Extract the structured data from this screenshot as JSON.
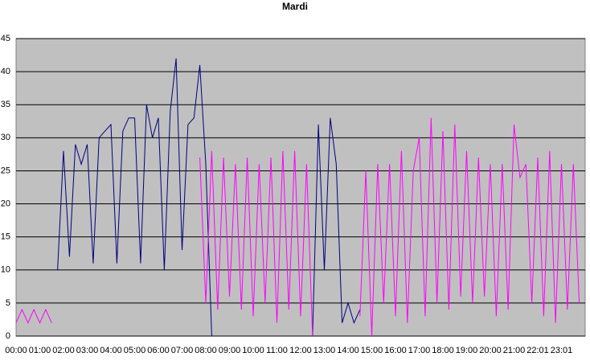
{
  "chart_data": {
    "type": "line",
    "title": "Mardi",
    "categories": [
      "00:00",
      null,
      null,
      null,
      "01:00",
      null,
      null,
      null,
      "02:00",
      null,
      null,
      null,
      "03:00",
      null,
      null,
      null,
      "04:00",
      null,
      null,
      null,
      "05:00",
      null,
      null,
      null,
      "06:00",
      null,
      null,
      null,
      "07:00",
      null,
      null,
      null,
      "08:00",
      null,
      null,
      null,
      "09:00",
      null,
      null,
      null,
      "10:00",
      null,
      null,
      null,
      "11:00",
      null,
      null,
      null,
      "12:00",
      null,
      null,
      null,
      "13:00",
      null,
      null,
      null,
      "14:00",
      null,
      null,
      null,
      "15:00",
      null,
      null,
      null,
      "16:00",
      null,
      null,
      null,
      "17:00",
      null,
      null,
      null,
      "18:00",
      null,
      null,
      null,
      "19:00",
      null,
      null,
      null,
      "20:00",
      null,
      null,
      null,
      "21:00",
      null,
      null,
      null,
      "22:01",
      null,
      null,
      null,
      "23:01",
      null,
      null,
      null
    ],
    "series": [
      {
        "color": "#000080",
        "values": [
          null,
          null,
          null,
          null,
          null,
          null,
          null,
          10,
          28,
          12,
          29,
          26,
          29,
          11,
          30,
          31,
          32,
          11,
          31,
          33,
          33,
          11,
          35,
          30,
          33,
          10,
          34,
          42,
          13,
          32,
          33,
          41,
          26,
          0,
          null,
          null,
          null,
          null,
          null,
          null,
          null,
          null,
          null,
          null,
          null,
          null,
          null,
          null,
          null,
          null,
          0,
          32,
          10,
          33,
          26,
          2,
          5,
          2,
          4,
          null,
          null,
          null,
          null,
          null,
          null,
          null,
          null,
          null,
          null,
          null,
          null,
          null,
          null,
          null,
          null,
          null,
          null,
          null,
          null,
          null,
          null,
          null,
          null,
          null,
          null,
          null,
          null,
          null,
          null,
          null,
          null,
          null,
          null,
          null,
          null,
          null
        ]
      },
      {
        "color": "#ff00ff",
        "values": [
          2,
          4,
          2,
          4,
          2,
          4,
          2,
          null,
          null,
          null,
          null,
          null,
          null,
          null,
          null,
          null,
          null,
          null,
          null,
          null,
          null,
          null,
          null,
          null,
          null,
          null,
          null,
          null,
          null,
          null,
          null,
          27,
          5,
          28,
          4,
          27,
          6,
          26,
          4,
          27,
          3,
          26,
          5,
          27,
          2,
          28,
          4,
          28,
          3,
          26,
          0,
          null,
          null,
          null,
          null,
          null,
          null,
          null,
          3,
          25,
          0,
          26,
          5,
          26,
          3,
          28,
          2,
          25,
          30,
          3,
          33,
          5,
          31,
          4,
          32,
          6,
          28,
          5,
          27,
          6,
          26,
          3,
          26,
          4,
          32,
          24,
          26,
          5,
          27,
          3,
          28,
          2,
          26,
          4,
          26,
          5
        ]
      }
    ],
    "ylim": [
      0,
      45
    ],
    "yticks": [
      0,
      5,
      10,
      15,
      20,
      25,
      30,
      35,
      40,
      45
    ],
    "grid": true,
    "plot_background": "#c0c0c0"
  }
}
